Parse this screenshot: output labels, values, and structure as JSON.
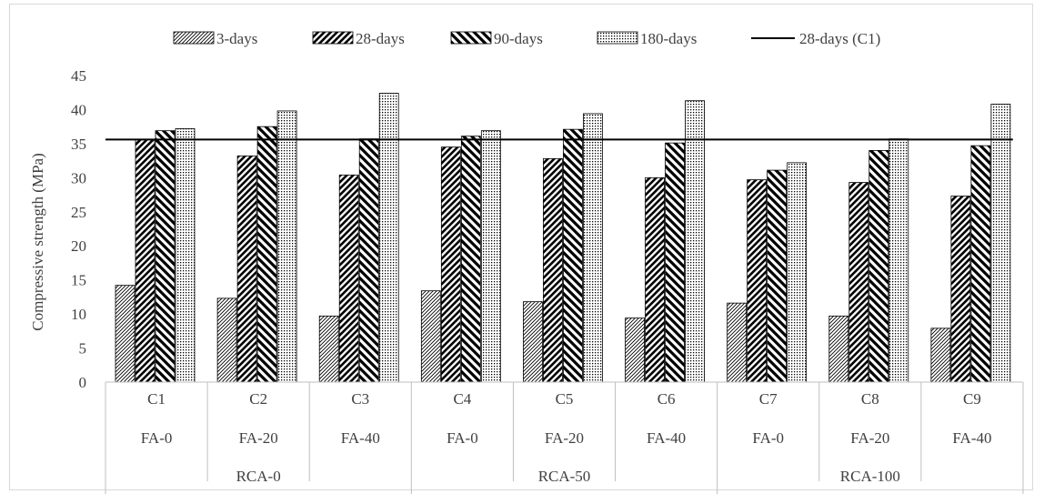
{
  "chart_data": {
    "type": "bar",
    "title": "",
    "ylabel": "Compressive strength (MPa)",
    "xlabel": "",
    "ylim": [
      0,
      45
    ],
    "yticks": [
      0,
      5,
      10,
      15,
      20,
      25,
      30,
      35,
      40,
      45
    ],
    "grid": false,
    "legend_position": "top",
    "categories": [
      "C1",
      "C2",
      "C3",
      "C4",
      "C5",
      "C6",
      "C7",
      "C8",
      "C9"
    ],
    "fa_labels": [
      "FA-0",
      "FA-20",
      "FA-40",
      "FA-0",
      "FA-20",
      "FA-40",
      "FA-0",
      "FA-20",
      "FA-40"
    ],
    "rca_groups": [
      {
        "label": "RCA-0",
        "span": 3
      },
      {
        "label": "RCA-50",
        "span": 3
      },
      {
        "label": "RCA-100",
        "span": 3
      }
    ],
    "series": [
      {
        "name": "3-days",
        "pattern": "diag-fine",
        "values": [
          14.2,
          12.3,
          9.7,
          13.4,
          11.8,
          9.4,
          11.6,
          9.7,
          7.9
        ]
      },
      {
        "name": "28-days",
        "pattern": "diag-forward",
        "values": [
          35.6,
          33.2,
          30.4,
          34.5,
          32.8,
          30.0,
          29.7,
          29.3,
          27.3
        ]
      },
      {
        "name": "90-days",
        "pattern": "diag-backward",
        "values": [
          36.9,
          37.5,
          35.7,
          36.1,
          37.1,
          35.1,
          31.1,
          34.0,
          34.7
        ]
      },
      {
        "name": "180-days",
        "pattern": "dots",
        "values": [
          37.2,
          39.8,
          42.4,
          36.9,
          39.4,
          41.3,
          32.2,
          35.7,
          40.8
        ]
      }
    ],
    "reference_line": {
      "name": "28-days (C1)",
      "value": 35.6,
      "color": "#000000"
    }
  }
}
